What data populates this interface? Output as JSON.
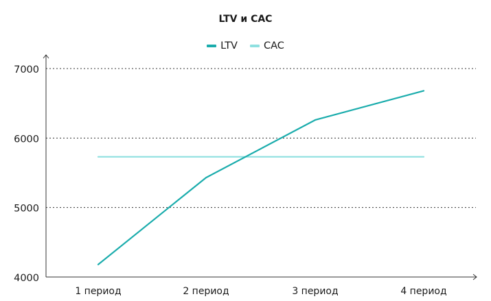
{
  "chart_data": {
    "type": "line",
    "title": "LTV и CAC",
    "categories": [
      "1 период",
      "2 период",
      "3 период",
      "4 период"
    ],
    "series": [
      {
        "name": "LTV",
        "values": [
          4180,
          5430,
          6260,
          6680
        ],
        "color": "#1aacac"
      },
      {
        "name": "CAC",
        "values": [
          5730,
          5730,
          5730,
          5730
        ],
        "color": "#8ee0e0"
      }
    ],
    "yticks": [
      "4000",
      "5000",
      "6000",
      "7000"
    ],
    "ylim": [
      4000,
      7000
    ],
    "grid": "dotted horizontal",
    "legend_position": "top-center"
  }
}
